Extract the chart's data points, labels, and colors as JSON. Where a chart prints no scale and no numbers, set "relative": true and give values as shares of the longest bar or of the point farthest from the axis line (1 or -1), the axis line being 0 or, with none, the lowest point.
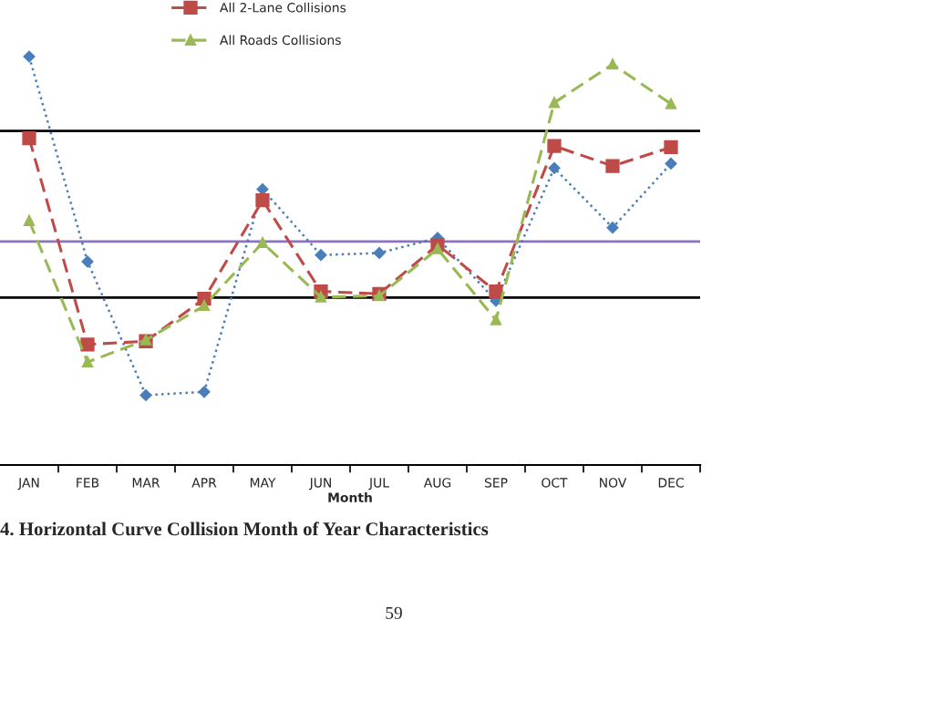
{
  "chart_data": {
    "type": "line",
    "relative": true,
    "xlabel": "Month",
    "categories": [
      "JAN",
      "FEB",
      "MAR",
      "APR",
      "MAY",
      "JUN",
      "JUL",
      "AUG",
      "SEP",
      "OCT",
      "NOV",
      "DEC"
    ],
    "series": [
      {
        "color": "#4a7ebb",
        "marker": "diamond",
        "line_style": "dotted",
        "values": [
          1.0,
          0.498,
          0.171,
          0.179,
          0.675,
          0.514,
          0.519,
          0.556,
          0.402,
          0.727,
          0.581,
          0.738
        ]
      },
      {
        "name": "All 2-Lane Collisions",
        "color": "#be4b48",
        "marker": "square",
        "line_style": "dashed",
        "values": [
          0.8,
          0.295,
          0.303,
          0.407,
          0.648,
          0.425,
          0.419,
          0.539,
          0.425,
          0.781,
          0.732,
          0.778
        ]
      },
      {
        "name": "All Roads Collisions",
        "color": "#98b954",
        "marker": "triangle",
        "line_style": "dashed",
        "values": [
          0.598,
          0.252,
          0.306,
          0.39,
          0.544,
          0.411,
          0.414,
          0.529,
          0.355,
          0.887,
          0.981,
          0.884
        ]
      }
    ],
    "ref_lines": [
      {
        "axis": "y",
        "value": 0.818,
        "color": "#000000"
      },
      {
        "axis": "y",
        "value": 0.41,
        "color": "#000000"
      },
      {
        "axis": "y",
        "value": 0.547,
        "color": "#9070c0"
      }
    ],
    "legend": "top left",
    "grid": false,
    "annotations": [
      "4. Horizontal Curve Collision Month of Year Characteristics",
      "59"
    ]
  }
}
